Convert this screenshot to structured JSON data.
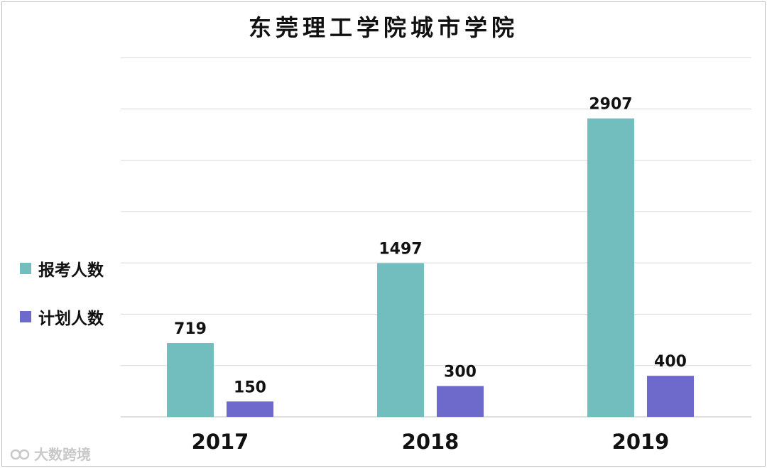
{
  "chart_data": {
    "type": "bar",
    "title": "东莞理工学院城市学院",
    "categories": [
      "2017",
      "2018",
      "2019"
    ],
    "series": [
      {
        "name": "报考人数",
        "color": "#72bdbd",
        "values": [
          719,
          1497,
          2907
        ]
      },
      {
        "name": "计划人数",
        "color": "#6d6acb",
        "values": [
          150,
          300,
          400
        ]
      }
    ],
    "ylim": [
      0,
      3500
    ],
    "grid": true,
    "legend": "left",
    "xlabel": "",
    "ylabel": ""
  },
  "watermark": {
    "text": "大数跨境"
  }
}
